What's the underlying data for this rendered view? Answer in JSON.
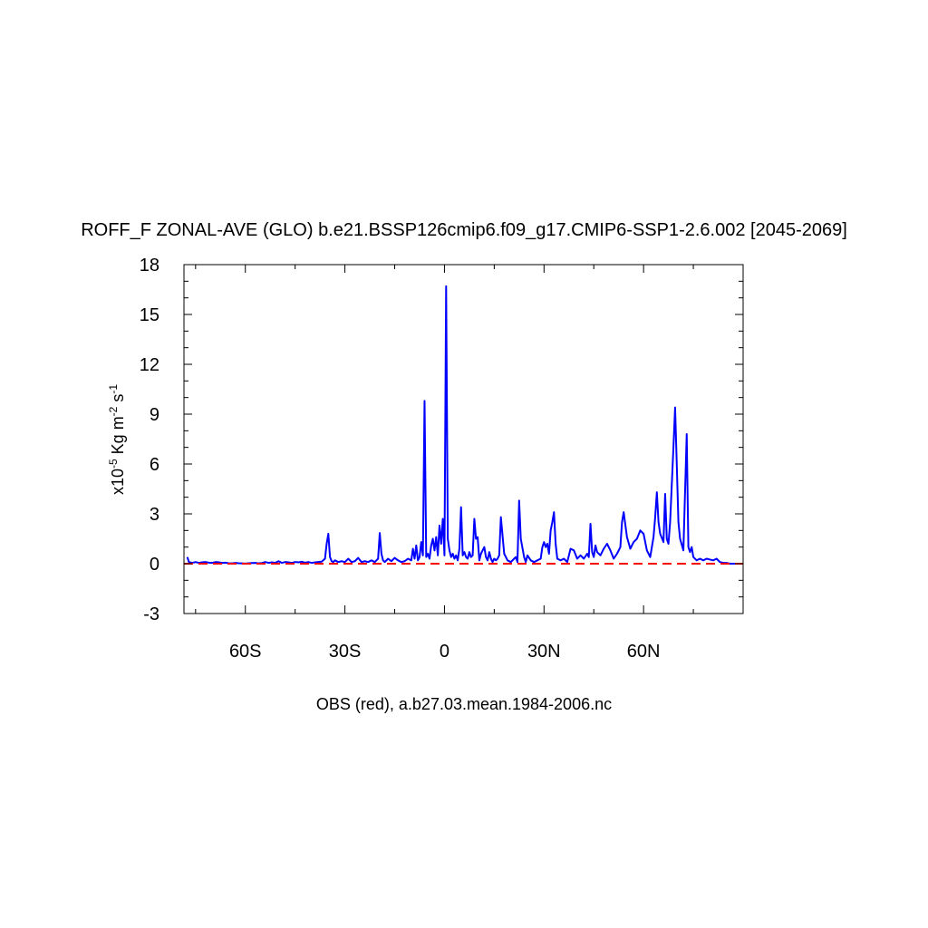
{
  "chart_data": {
    "type": "line",
    "title": "ROFF_F ZONAL-AVE (GLO) b.e21.BSSP126cmip6.f09_g17.CMIP6-SSP1-2.6.002 [2045-2069]",
    "xlabel": "OBS (red), a.b27.03.mean.1984-2006.nc",
    "ylabel": {
      "prefix": "x10",
      "exp1": "-5",
      "mid": " Kg m",
      "exp2": "-2",
      "mid2": " s",
      "exp3": "-1"
    },
    "xlim": [
      -78.5,
      90
    ],
    "ylim": [
      -3,
      18
    ],
    "x_ticks": [
      {
        "value": -60,
        "label": "60S"
      },
      {
        "value": -30,
        "label": "30S"
      },
      {
        "value": 0,
        "label": "0"
      },
      {
        "value": 30,
        "label": "30N"
      },
      {
        "value": 60,
        "label": "60N"
      }
    ],
    "y_ticks": [
      {
        "value": -3,
        "label": "-3"
      },
      {
        "value": 0,
        "label": "0"
      },
      {
        "value": 3,
        "label": "3"
      },
      {
        "value": 6,
        "label": "6"
      },
      {
        "value": 9,
        "label": "9"
      },
      {
        "value": 12,
        "label": "12"
      },
      {
        "value": 15,
        "label": "15"
      },
      {
        "value": 18,
        "label": "18"
      }
    ],
    "grid": false,
    "legend": "none",
    "series": [
      {
        "color": "#0000ff",
        "style": "solid",
        "x": [
          -77.5,
          -77,
          -76,
          -75,
          -74,
          -73,
          -72,
          -71,
          -70,
          -69,
          -68,
          -67,
          -66,
          -65,
          -64,
          -63,
          -62,
          -61,
          -60,
          -59,
          -58,
          -57,
          -56,
          -55,
          -54,
          -53,
          -52,
          -51,
          -50,
          -49,
          -48,
          -47,
          -46,
          -45,
          -44,
          -43,
          -42,
          -41,
          -40,
          -39,
          -38,
          -37,
          -36,
          -35.5,
          -35,
          -34.5,
          -34,
          -33.5,
          -33,
          -32,
          -31,
          -30,
          -29,
          -28,
          -27,
          -26,
          -25,
          -24,
          -23,
          -22,
          -21,
          -20,
          -19.5,
          -19,
          -18.5,
          -18,
          -17,
          -16,
          -15,
          -14,
          -13,
          -12,
          -11,
          -10,
          -9.5,
          -9,
          -8.5,
          -8,
          -7.5,
          -7,
          -6.5,
          -6,
          -5.5,
          -5,
          -4.5,
          -4,
          -3.5,
          -3,
          -2.5,
          -2,
          -1.5,
          -1,
          -0.5,
          0,
          0.5,
          1,
          1.5,
          2,
          2.5,
          3,
          3.5,
          4,
          4.5,
          5,
          5.5,
          6,
          6.5,
          7,
          7.5,
          8,
          8.5,
          9,
          9.5,
          10,
          10.5,
          11,
          11.5,
          12,
          12.5,
          13,
          13.5,
          14,
          14.5,
          15,
          15.5,
          16,
          16.5,
          17,
          18,
          19,
          20,
          21,
          21.5,
          22,
          22.5,
          23,
          24,
          24.5,
          25,
          26,
          27,
          28,
          29,
          29.5,
          30,
          30.5,
          31,
          31.5,
          32,
          32.5,
          33,
          33.5,
          34,
          35,
          36,
          37,
          37.5,
          38,
          39,
          40,
          41,
          42,
          43,
          43.5,
          44,
          44.5,
          45,
          45.5,
          46,
          46.5,
          47,
          48,
          49,
          50,
          51,
          52,
          53,
          53.5,
          54,
          55,
          56,
          57,
          58,
          59,
          60,
          61,
          62,
          63,
          63.5,
          64,
          64.5,
          65,
          66,
          66.5,
          67,
          67.5,
          68,
          69,
          69.5,
          70,
          70.5,
          71,
          72,
          73,
          73.5,
          74,
          74.5,
          75,
          76,
          77,
          78,
          79,
          80,
          81,
          82,
          83,
          84,
          85,
          86,
          87,
          88,
          89,
          90
        ],
        "values": [
          0.4,
          0.1,
          0.05,
          0.1,
          0.05,
          0.08,
          0.1,
          0.06,
          0.05,
          0.1,
          0.08,
          0.05,
          0.06,
          0.03,
          0.02,
          0.05,
          0.03,
          0.02,
          0.01,
          0.03,
          0.04,
          0.05,
          0.02,
          0.04,
          0.1,
          0.05,
          0.08,
          0.05,
          0.15,
          0.05,
          0.1,
          0.08,
          0.05,
          0.1,
          0.08,
          0.12,
          0.06,
          0.1,
          0.05,
          0.08,
          0.1,
          0.12,
          0.3,
          1.2,
          1.8,
          0.4,
          0.15,
          0.1,
          0.2,
          0.1,
          0.15,
          0.1,
          0.3,
          0.1,
          0.15,
          0.35,
          0.1,
          0.15,
          0.1,
          0.2,
          0.1,
          0.3,
          1.85,
          0.6,
          0.2,
          0.1,
          0.3,
          0.15,
          0.35,
          0.2,
          0.1,
          0.15,
          0.3,
          0.2,
          0.9,
          0.3,
          1.1,
          0.2,
          0.4,
          1.3,
          0.5,
          9.8,
          0.4,
          0.6,
          0.3,
          1.1,
          1.5,
          0.8,
          1.6,
          0.5,
          2.3,
          1.2,
          2.7,
          0.5,
          16.7,
          1.5,
          0.8,
          0.4,
          0.6,
          0.3,
          0.5,
          0.2,
          0.9,
          3.4,
          0.5,
          0.7,
          0.4,
          0.3,
          0.7,
          0.4,
          0.5,
          2.7,
          1.5,
          1.6,
          0.2,
          0.6,
          0.8,
          1.0,
          0.4,
          0.2,
          0.7,
          0.3,
          0.1,
          0.3,
          0.2,
          0.3,
          0.5,
          2.8,
          0.6,
          0.2,
          0.1,
          0.3,
          0.4,
          0.1,
          3.8,
          1.5,
          0.4,
          0.1,
          0.5,
          0.2,
          0.1,
          0.2,
          0.3,
          1.0,
          1.3,
          1.0,
          1.2,
          0.6,
          2.0,
          2.5,
          3.1,
          1.2,
          0.3,
          0.2,
          0.3,
          0.1,
          0.5,
          0.9,
          0.8,
          0.3,
          0.5,
          0.3,
          0.6,
          0.4,
          2.4,
          0.7,
          0.4,
          1.1,
          0.7,
          0.6,
          0.5,
          0.9,
          1.2,
          0.8,
          0.3,
          0.6,
          1.0,
          2.5,
          3.1,
          1.6,
          0.9,
          1.3,
          1.5,
          2.0,
          1.8,
          0.8,
          0.4,
          1.6,
          2.8,
          4.3,
          2.5,
          1.8,
          1.3,
          4.2,
          1.5,
          1.2,
          2.5,
          7.0,
          9.4,
          6.0,
          2.5,
          1.5,
          0.8,
          7.8,
          1.0,
          0.7,
          1.0,
          0.4,
          0.2,
          0.3,
          0.2,
          0.3,
          0.25,
          0.2,
          0.3,
          0.1,
          0.05,
          0.05,
          0.0,
          0.0,
          0.0,
          0.0,
          0.0
        ]
      },
      {
        "color": "#ff0000",
        "style": "dashed",
        "x": [
          -78.5,
          90
        ],
        "values": [
          0,
          0
        ]
      }
    ]
  }
}
